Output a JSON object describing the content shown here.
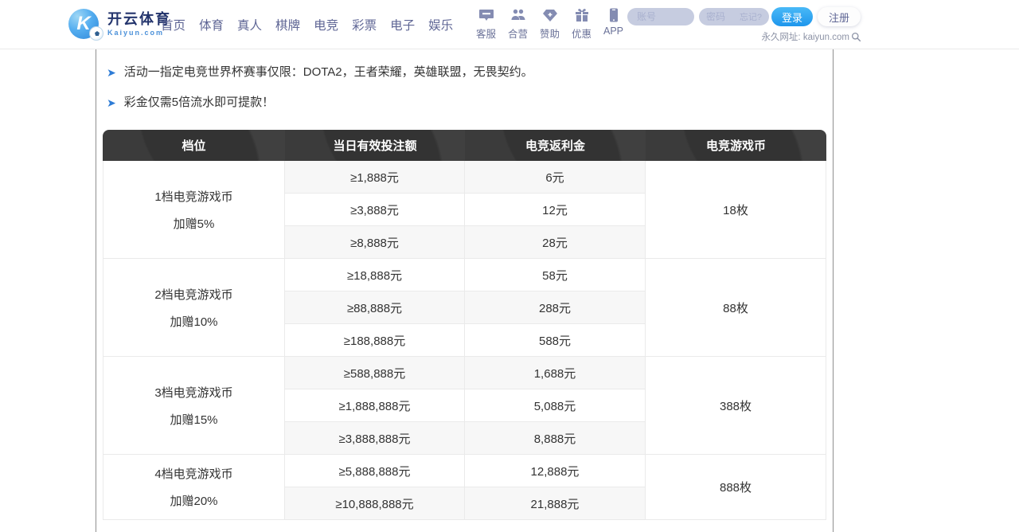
{
  "header": {
    "logo": {
      "mark": "K",
      "brand": "开云体育",
      "domain": "Kaiyun.com"
    },
    "nav": [
      "首页",
      "体育",
      "真人",
      "棋牌",
      "电竞",
      "彩票",
      "电子",
      "娱乐"
    ],
    "quick_links": [
      {
        "icon": "chat-icon",
        "label": "客服"
      },
      {
        "icon": "partners-icon",
        "label": "合营"
      },
      {
        "icon": "diamond-icon",
        "label": "赞助"
      },
      {
        "icon": "gift-icon",
        "label": "优惠"
      },
      {
        "icon": "phone-icon",
        "label": "APP"
      }
    ],
    "login": {
      "account_placeholder": "账号",
      "password_placeholder": "密码",
      "forgot_label": "忘记?",
      "login_label": "登录",
      "register_label": "注册",
      "permanent_url_label": "永久网址: kaiyun.com"
    }
  },
  "notes": [
    "活动一指定电竞世界杯赛事仅限：DOTA2，王者荣耀，英雄联盟，无畏契约。",
    "彩金仅需5倍流水即可提款！"
  ],
  "table": {
    "columns": [
      "档位",
      "当日有效投注额",
      "电竞返利金",
      "电竞游戏币"
    ],
    "groups": [
      {
        "tier": "1档电竞游戏币",
        "bonus": "加赠5%",
        "coins": "18枚",
        "rows": [
          [
            "≥1,888元",
            "6元"
          ],
          [
            "≥3,888元",
            "12元"
          ],
          [
            "≥8,888元",
            "28元"
          ]
        ]
      },
      {
        "tier": "2档电竞游戏币",
        "bonus": "加赠10%",
        "coins": "88枚",
        "rows": [
          [
            "≥18,888元",
            "58元"
          ],
          [
            "≥88,888元",
            "288元"
          ],
          [
            "≥188,888元",
            "588元"
          ]
        ]
      },
      {
        "tier": "3档电竞游戏币",
        "bonus": "加赠15%",
        "coins": "388枚",
        "rows": [
          [
            "≥588,888元",
            "1,688元"
          ],
          [
            "≥1,888,888元",
            "5,088元"
          ],
          [
            "≥3,888,888元",
            "8,888元"
          ]
        ]
      },
      {
        "tier": "4档电竞游戏币",
        "bonus": "加赠20%",
        "coins": "888枚",
        "rows": [
          [
            "≥5,888,888元",
            "12,888元"
          ],
          [
            "≥10,888,888元",
            "21,888元"
          ]
        ]
      }
    ]
  },
  "colors": {
    "nav_text": "#5f6695",
    "accent_blue": "#2196f0",
    "table_header_bg": "#4a4a4a",
    "stripe_row": "#f7f7f7",
    "note_arrow": "#2e7cd6"
  }
}
